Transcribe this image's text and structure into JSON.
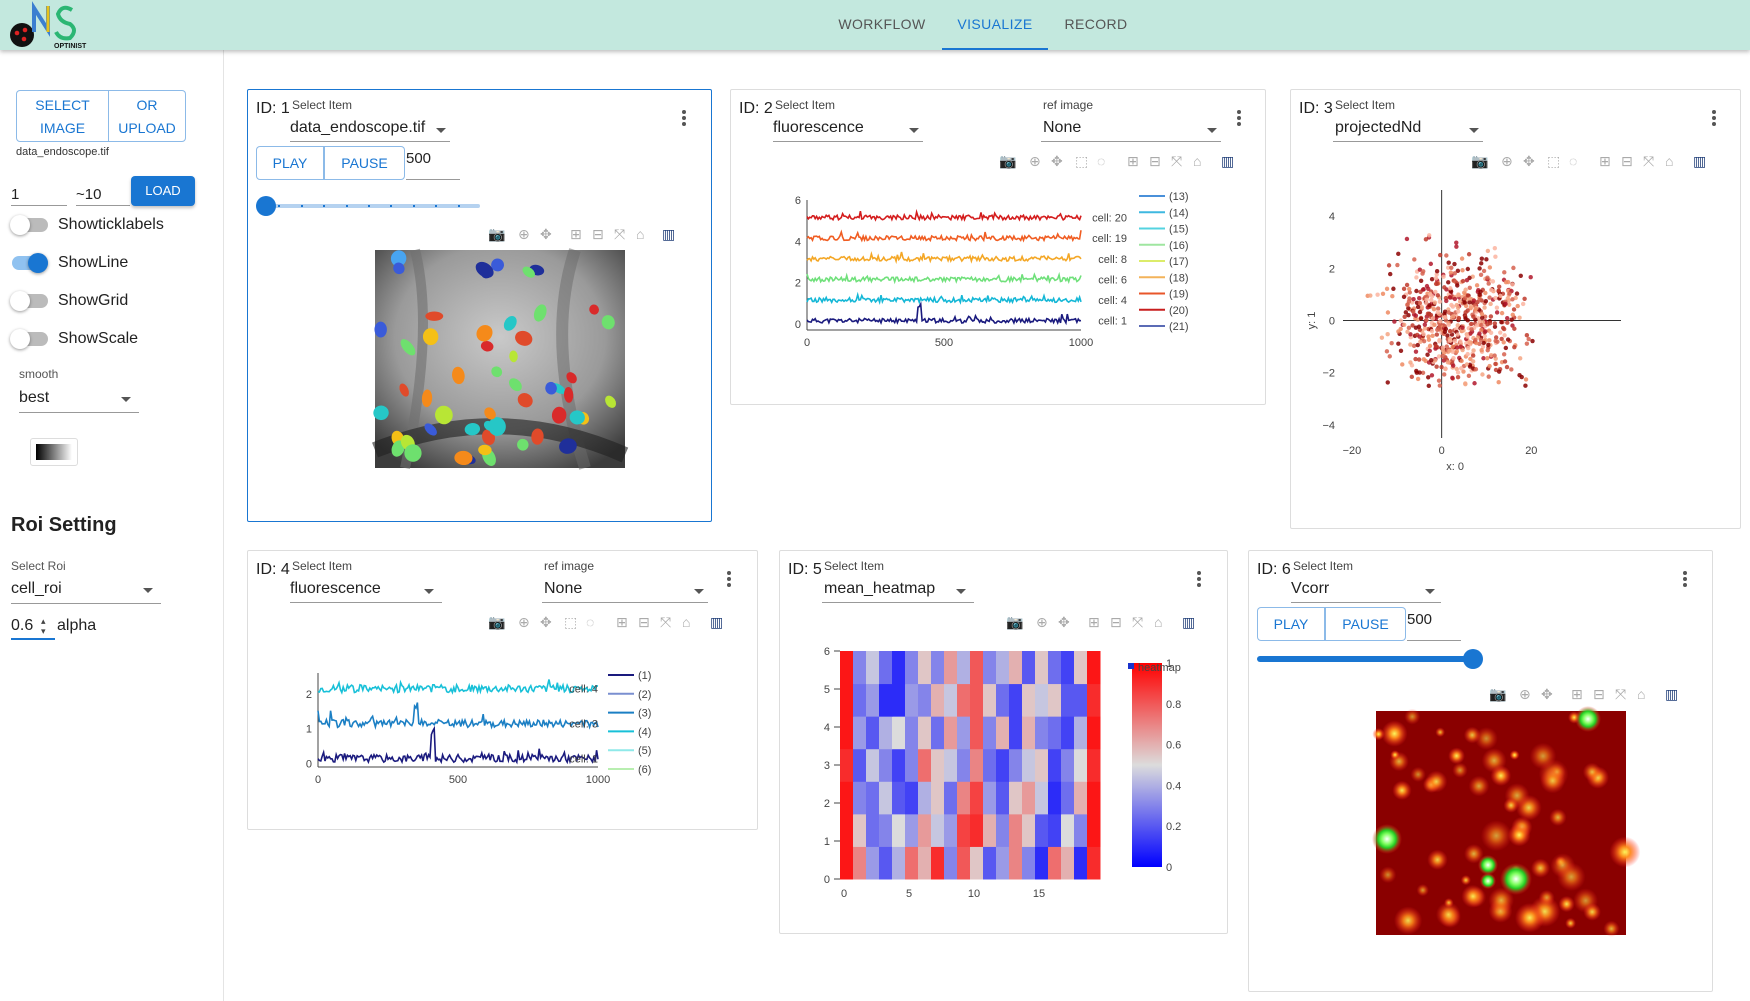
{
  "nav": {
    "tabs": [
      {
        "label": "WORKFLOW"
      },
      {
        "label": "VISUALIZE"
      },
      {
        "label": "RECORD"
      }
    ],
    "logo_text": "OPTINIST"
  },
  "sidebar": {
    "select_image": "SELECT IMAGE",
    "or_upload": "OR UPLOAD",
    "filename": "data_endoscope.tif",
    "range_start": "1",
    "range_end": "~10",
    "load": "LOAD",
    "toggles": [
      {
        "label": "Showticklabels",
        "on": false
      },
      {
        "label": "ShowLine",
        "on": true
      },
      {
        "label": "ShowGrid",
        "on": false
      },
      {
        "label": "ShowScale",
        "on": false
      }
    ],
    "smooth_label": "smooth",
    "smooth_value": "best",
    "roi_title": "Roi Setting",
    "select_roi_label": "Select Roi",
    "select_roi_value": "cell_roi",
    "alpha_value": "0.6",
    "alpha_label": "alpha"
  },
  "cards": {
    "c1": {
      "id": "ID: 1",
      "select_label": "Select Item",
      "select_value": "data_endoscope.tif",
      "play": "PLAY",
      "pause": "PAUSE",
      "frame": "500",
      "slider_fraction": 0
    },
    "c2": {
      "id": "ID: 2",
      "select_label": "Select Item",
      "select_value": "fluorescence",
      "ref_label": "ref image",
      "ref_value": "None"
    },
    "c3": {
      "id": "ID: 3",
      "select_label": "Select Item",
      "select_value": "projectedNd"
    },
    "c4": {
      "id": "ID: 4",
      "select_label": "Select Item",
      "select_value": "fluorescence",
      "ref_label": "ref image",
      "ref_value": "None"
    },
    "c5": {
      "id": "ID: 5",
      "select_label": "Select Item",
      "select_value": "mean_heatmap"
    },
    "c6": {
      "id": "ID: 6",
      "select_label": "Select Item",
      "select_value": "Vcorr",
      "play": "PLAY",
      "pause": "PAUSE",
      "frame": "500",
      "slider_fraction": 1.0
    }
  },
  "chart_data": [
    {
      "type": "line",
      "card": "ID: 2",
      "xlim": [
        0,
        1000
      ],
      "ylim": [
        -0.3,
        6
      ],
      "x_ticks": [
        "0",
        "500",
        "1000"
      ],
      "y_ticks": [
        "0",
        "2",
        "4",
        "6"
      ],
      "series": [
        {
          "name": "cell: 1",
          "offset": 0,
          "color": "#1a1a7e"
        },
        {
          "name": "cell: 4",
          "offset": 1,
          "color": "#14b7d6"
        },
        {
          "name": "cell: 6",
          "offset": 2,
          "color": "#6fe07a"
        },
        {
          "name": "cell: 8",
          "offset": 3,
          "color": "#f4a726"
        },
        {
          "name": "cell: 19",
          "offset": 4,
          "color": "#f05d22"
        },
        {
          "name": "cell: 20",
          "offset": 5,
          "color": "#d41d1d"
        }
      ],
      "legend": [
        {
          "label": "(13)",
          "color": "#4a90d9"
        },
        {
          "label": "(14)",
          "color": "#3fb8e0"
        },
        {
          "label": "(15)",
          "color": "#54d3e0"
        },
        {
          "label": "(16)",
          "color": "#9fe6a0"
        },
        {
          "label": "(17)",
          "color": "#dcec6a"
        },
        {
          "label": "(18)",
          "color": "#f3b35a"
        },
        {
          "label": "(19)",
          "color": "#e8562a"
        },
        {
          "label": "(20)",
          "color": "#c81e1e"
        },
        {
          "label": "(21)",
          "color": "#5b6bb5"
        }
      ]
    },
    {
      "type": "scatter",
      "card": "ID: 3",
      "xlim": [
        -22,
        40
      ],
      "ylim": [
        -4.5,
        5
      ],
      "x_ticks": [
        "−20",
        "0",
        "20"
      ],
      "y_ticks": [
        "4",
        "2",
        "0",
        "−2",
        "−4"
      ],
      "xlabel": "x: 0",
      "ylabel": "y: 1"
    },
    {
      "type": "line",
      "card": "ID: 4",
      "xlim": [
        0,
        1000
      ],
      "ylim": [
        -0.1,
        2.6
      ],
      "x_ticks": [
        "0",
        "500",
        "1000"
      ],
      "y_ticks": [
        "0",
        "1",
        "2"
      ],
      "series": [
        {
          "name": "cell: 1",
          "offset": 0,
          "color": "#1a1a7e"
        },
        {
          "name": "cell: 3",
          "offset": 1,
          "color": "#1b7fc4"
        },
        {
          "name": "cell: 4",
          "offset": 2,
          "color": "#18c0d8"
        }
      ],
      "legend": [
        {
          "label": "(1)",
          "color": "#1a1a7e"
        },
        {
          "label": "(2)",
          "color": "#7a8fd0"
        },
        {
          "label": "(3)",
          "color": "#1b7fc4"
        },
        {
          "label": "(4)",
          "color": "#18c0d8"
        },
        {
          "label": "(5)",
          "color": "#8fe9e9"
        },
        {
          "label": "(6)",
          "color": "#b8eeb0"
        }
      ]
    },
    {
      "type": "heatmap",
      "card": "ID: 5",
      "x_ticks": [
        "0",
        "5",
        "10",
        "15"
      ],
      "y_ticks": [
        "0",
        "1",
        "2",
        "3",
        "4",
        "5",
        "6"
      ],
      "colorbar_ticks": [
        "0",
        "0.2",
        "0.4",
        "0.6",
        "0.8",
        "1"
      ],
      "legend_label": "heatmap",
      "rows": [
        [
          0.95,
          0.7,
          0.35,
          0.2,
          0.4,
          0.75,
          0.6,
          0.9,
          0.3,
          0.8,
          0.55,
          0.2,
          0.35,
          0.7,
          0.3,
          0.1,
          0.75,
          0.6,
          0.1,
          0.9
        ],
        [
          0.95,
          0.55,
          0.25,
          0.3,
          0.5,
          0.35,
          0.65,
          0.45,
          0.35,
          0.85,
          0.9,
          0.6,
          0.3,
          0.7,
          0.55,
          0.2,
          0.15,
          0.5,
          0.3,
          0.95
        ],
        [
          0.95,
          0.3,
          0.25,
          0.45,
          0.2,
          0.15,
          0.4,
          0.55,
          0.25,
          0.7,
          0.85,
          0.35,
          0.2,
          0.55,
          0.65,
          0.45,
          0.1,
          0.25,
          0.6,
          0.95
        ],
        [
          0.9,
          0.2,
          0.45,
          0.3,
          0.15,
          0.3,
          0.75,
          0.55,
          0.45,
          0.3,
          0.7,
          0.25,
          0.15,
          0.3,
          0.45,
          0.55,
          0.15,
          0.3,
          0.5,
          0.9
        ],
        [
          0.95,
          0.35,
          0.2,
          0.4,
          0.5,
          0.3,
          0.55,
          0.25,
          0.65,
          0.35,
          0.8,
          0.3,
          0.6,
          0.15,
          0.6,
          0.3,
          0.25,
          0.15,
          0.4,
          0.95
        ],
        [
          0.95,
          0.25,
          0.35,
          0.1,
          0.1,
          0.35,
          0.3,
          0.6,
          0.45,
          0.75,
          0.8,
          0.55,
          0.25,
          0.15,
          0.55,
          0.45,
          0.55,
          0.2,
          0.2,
          0.9
        ],
        [
          0.95,
          0.3,
          0.45,
          0.25,
          0.1,
          0.3,
          0.55,
          0.3,
          0.65,
          0.4,
          0.8,
          0.3,
          0.4,
          0.6,
          0.2,
          0.55,
          0.25,
          0.15,
          0.55,
          0.95
        ]
      ]
    }
  ]
}
